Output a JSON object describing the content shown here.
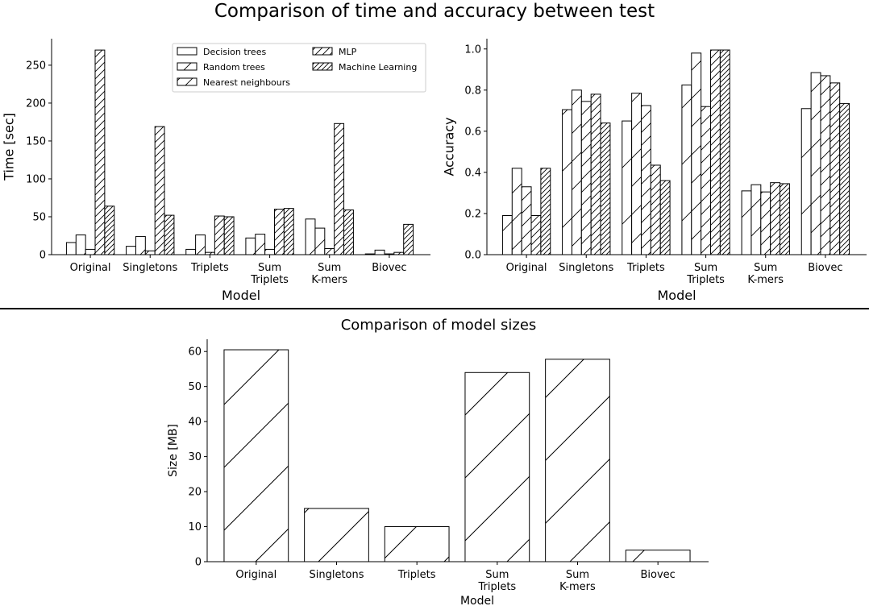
{
  "figure": {
    "title": "Comparison of time and accuracy between test",
    "bottom_title": "Comparison of model sizes"
  },
  "chart_data": [
    {
      "id": "time",
      "type": "bar",
      "title": "",
      "xlabel": "Model",
      "ylabel": "Time [sec]",
      "categories": [
        "Original",
        "Singletons",
        "Triplets",
        "Sum\nTriplets",
        "Sum\nK-mers",
        "Biovec"
      ],
      "ylim": [
        0,
        285
      ],
      "yticks": [
        0,
        50,
        100,
        150,
        200,
        250
      ],
      "legend_position": "top-right",
      "series": [
        {
          "name": "Decision trees",
          "values": [
            16,
            11,
            7,
            22,
            47,
            1
          ]
        },
        {
          "name": "Random trees",
          "values": [
            26,
            24,
            26,
            27,
            35,
            6
          ]
        },
        {
          "name": "Nearest neighbours",
          "values": [
            7,
            5,
            3,
            7,
            8,
            1
          ]
        },
        {
          "name": "MLP",
          "values": [
            270,
            169,
            51,
            60,
            173,
            3
          ]
        },
        {
          "name": "Machine Learning",
          "values": [
            64,
            52,
            50,
            61,
            59,
            40
          ]
        }
      ]
    },
    {
      "id": "accuracy",
      "type": "bar",
      "title": "",
      "xlabel": "Model",
      "ylabel": "Accuracy",
      "categories": [
        "Original",
        "Singletons",
        "Triplets",
        "Sum\nTriplets",
        "Sum\nK-mers",
        "Biovec"
      ],
      "ylim": [
        0,
        1.05
      ],
      "yticks": [
        0.0,
        0.2,
        0.4,
        0.6,
        0.8,
        1.0
      ],
      "series": [
        {
          "name": "Decision trees",
          "values": [
            0.19,
            0.705,
            0.65,
            0.825,
            0.31,
            0.71
          ]
        },
        {
          "name": "Random trees",
          "values": [
            0.42,
            0.8,
            0.785,
            0.98,
            0.34,
            0.885
          ]
        },
        {
          "name": "Nearest neighbours",
          "values": [
            0.33,
            0.745,
            0.725,
            0.72,
            0.305,
            0.87
          ]
        },
        {
          "name": "MLP",
          "values": [
            0.19,
            0.78,
            0.435,
            0.995,
            0.35,
            0.835
          ]
        },
        {
          "name": "Machine Learning",
          "values": [
            0.42,
            0.64,
            0.36,
            0.995,
            0.345,
            0.735
          ]
        }
      ]
    },
    {
      "id": "size",
      "type": "bar",
      "title": "Comparison of model sizes",
      "xlabel": "Model",
      "ylabel": "Size [MB]",
      "categories": [
        "Original",
        "Singletons",
        "Triplets",
        "Sum\nTriplets",
        "Sum\nK-mers",
        "Biovec"
      ],
      "ylim": [
        0,
        63.5
      ],
      "yticks": [
        0,
        10,
        20,
        30,
        40,
        50,
        60
      ],
      "values": [
        60.5,
        15.2,
        10.0,
        54.0,
        57.8,
        3.3
      ]
    }
  ],
  "colors": {
    "bar_fill": "#ffffff",
    "bar_edge": "#000000",
    "hatch": "#000000",
    "separator": "#000000"
  }
}
